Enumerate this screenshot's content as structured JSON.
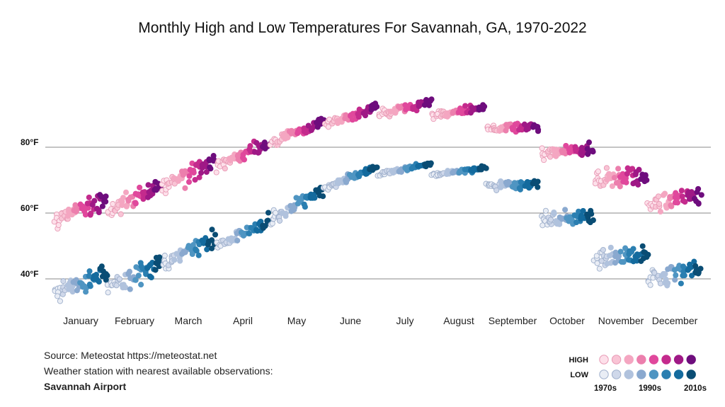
{
  "chart_data": {
    "type": "scatter",
    "title": "Monthly High and Low Temperatures For Savannah, GA, 1970-2022",
    "ylim": [
      30,
      100
    ],
    "yticks": [
      {
        "value": 40,
        "label": "40°F"
      },
      {
        "value": 60,
        "label": "60°F"
      },
      {
        "value": 80,
        "label": "80°F"
      }
    ],
    "grid": true,
    "categories": [
      "January",
      "February",
      "March",
      "April",
      "May",
      "June",
      "July",
      "August",
      "September",
      "October",
      "November",
      "December"
    ],
    "first_year": 1970,
    "last_year": 2022,
    "series": [
      {
        "name": "HIGH",
        "month_means": [
          61.2,
          64.5,
          71.8,
          77.6,
          84.6,
          89.4,
          91.9,
          91.0,
          86.1,
          78.6,
          70.6,
          64.0
        ],
        "trend_per_decade": [
          0.9,
          0.9,
          0.9,
          0.8,
          0.8,
          0.8,
          0.7,
          0.7,
          0.7,
          0.8,
          0.8,
          0.9
        ],
        "spread": [
          4.2,
          3.6,
          3.2,
          2.4,
          2.0,
          2.0,
          1.6,
          1.4,
          1.8,
          2.6,
          3.2,
          3.4
        ]
      },
      {
        "name": "LOW",
        "month_means": [
          38.8,
          41.2,
          48.5,
          53.8,
          62.6,
          70.6,
          73.4,
          72.6,
          68.4,
          58.6,
          46.8,
          41.6
        ],
        "trend_per_decade": [
          1.0,
          0.9,
          0.9,
          0.9,
          0.9,
          0.8,
          0.6,
          0.6,
          0.7,
          1.0,
          0.9,
          1.0
        ],
        "spread": [
          4.0,
          3.6,
          3.2,
          2.6,
          2.6,
          1.4,
          0.9,
          0.9,
          1.6,
          3.2,
          3.6,
          3.8
        ]
      }
    ],
    "colors": {
      "high": [
        "#fde0ea",
        "#f9c4d5",
        "#f4a6c1",
        "#ec7fad",
        "#e0489c",
        "#c42b8d",
        "#9f1986",
        "#6e0d7d"
      ],
      "low": [
        "#e9edf5",
        "#cfd8ea",
        "#b0c2dd",
        "#8aa9cf",
        "#4f95c2",
        "#2b7fb1",
        "#146b9e",
        "#0a4d74"
      ]
    },
    "legend": {
      "position": "bottom-right",
      "rows": [
        "HIGH",
        "LOW"
      ],
      "decade_labels": [
        "1970s",
        "1990s",
        "2010s"
      ]
    }
  },
  "source": {
    "line1": "Source: Meteostat https://meteostat.net",
    "line2": "Weather station with nearest available observations:",
    "line3": "Savannah Airport"
  }
}
